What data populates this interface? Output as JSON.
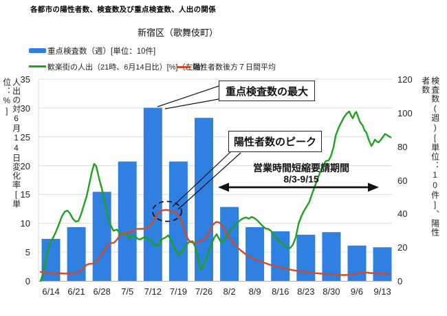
{
  "title": "各都市の陽性者数、検査数及び重点検査数、人出の関係",
  "subtitle": "新宿区（歌舞伎町）",
  "legend": {
    "bar": "重点検査数（週）[単位：10件]",
    "green_line": "歓楽街の人出（21時、6月14日比）[%]（左軸）",
    "red_line": "陽性者数後方７日間平均"
  },
  "annotations": {
    "max_tests": "重点検査数の最大",
    "positives_peak": "陽性者数のピーク",
    "period_line1": "営業時間短縮要請期間",
    "period_line2": "8/3-9/15"
  },
  "colors": {
    "bar": "#2f80e0",
    "green": "#1ba31b",
    "red": "#d04a2b",
    "grid": "#dcdcdc",
    "axis": "#b5b5b5",
    "annotation": "#111111"
  },
  "chart_data": {
    "type": "bar+line combo",
    "left_axis": {
      "label": "人出の対6月14日変化率[単位：%]",
      "range": [
        0,
        35
      ],
      "ticks": [
        0,
        5,
        10,
        15,
        20,
        25,
        30,
        35
      ]
    },
    "right_axis": {
      "label": "検査数(週)[単位：10件]、陽性者数",
      "range": [
        0,
        120
      ],
      "ticks": [
        0,
        20,
        40,
        60,
        80,
        100,
        120
      ]
    },
    "categories": [
      "6/14",
      "6/21",
      "6/28",
      "7/5",
      "7/12",
      "7/19",
      "7/26",
      "8/2",
      "8/9",
      "8/16",
      "8/23",
      "8/30",
      "9/6",
      "9/13"
    ],
    "bar_series": {
      "name": "重点検査数（週）[単位：10件]",
      "axis": "right",
      "values": [
        25,
        32,
        53,
        71,
        103,
        71,
        97,
        44,
        32,
        29.5,
        27.5,
        29,
        21,
        20
      ]
    },
    "line_series": [
      {
        "name": "歓楽街の人出（21時、6月14日比）[%]（左軸）",
        "axis": "left",
        "time_span": "daily, ~6/12 to ~9/15 (t = fraction of span)",
        "points": [
          [
            0,
            0
          ],
          [
            0.008,
            1.5
          ],
          [
            0.014,
            3.5
          ],
          [
            0.022,
            5.5
          ],
          [
            0.029,
            6.8
          ],
          [
            0.035,
            7.4
          ],
          [
            0.043,
            8.4
          ],
          [
            0.051,
            9.6
          ],
          [
            0.061,
            11.2
          ],
          [
            0.069,
            12.0
          ],
          [
            0.077,
            12.2
          ],
          [
            0.084,
            11.7
          ],
          [
            0.092,
            10.8
          ],
          [
            0.1,
            10.3
          ],
          [
            0.108,
            10.4
          ],
          [
            0.116,
            11.6
          ],
          [
            0.124,
            13.2
          ],
          [
            0.132,
            14.8
          ],
          [
            0.139,
            16.8
          ],
          [
            0.147,
            19.0
          ],
          [
            0.153,
            20.3
          ],
          [
            0.159,
            19.9
          ],
          [
            0.167,
            17.8
          ],
          [
            0.175,
            16.0
          ],
          [
            0.183,
            13.8
          ],
          [
            0.191,
            11.5
          ],
          [
            0.198,
            10.0
          ],
          [
            0.208,
            8.7
          ],
          [
            0.218,
            8.9
          ],
          [
            0.228,
            8.2
          ],
          [
            0.238,
            8.1
          ],
          [
            0.246,
            8.2
          ],
          [
            0.253,
            7.4
          ],
          [
            0.261,
            7.8
          ],
          [
            0.269,
            7.9
          ],
          [
            0.277,
            7.3
          ],
          [
            0.285,
            7.2
          ],
          [
            0.293,
            7.5
          ],
          [
            0.301,
            7.5
          ],
          [
            0.308,
            7.2
          ],
          [
            0.316,
            7.0
          ],
          [
            0.326,
            6.2
          ],
          [
            0.336,
            6.1
          ],
          [
            0.346,
            7.2
          ],
          [
            0.356,
            7.5
          ],
          [
            0.365,
            7.9
          ],
          [
            0.375,
            6.8
          ],
          [
            0.385,
            5.4
          ],
          [
            0.395,
            4.5
          ],
          [
            0.405,
            5.2
          ],
          [
            0.415,
            6.2
          ],
          [
            0.424,
            6.7
          ],
          [
            0.434,
            6.9
          ],
          [
            0.442,
            5.9
          ],
          [
            0.45,
            4.0
          ],
          [
            0.458,
            1.9
          ],
          [
            0.466,
            2.8
          ],
          [
            0.474,
            3.9
          ],
          [
            0.481,
            5.2
          ],
          [
            0.489,
            6.6
          ],
          [
            0.497,
            7.6
          ],
          [
            0.503,
            8.1
          ],
          [
            0.509,
            7.4
          ],
          [
            0.517,
            6.6
          ],
          [
            0.525,
            7.2
          ],
          [
            0.532,
            7.9
          ],
          [
            0.54,
            8.6
          ],
          [
            0.548,
            9.2
          ],
          [
            0.556,
            9.7
          ],
          [
            0.564,
            10.2
          ],
          [
            0.572,
            10.6
          ],
          [
            0.58,
            10.9
          ],
          [
            0.587,
            11.0
          ],
          [
            0.595,
            10.8
          ],
          [
            0.603,
            11.1
          ],
          [
            0.611,
            10.9
          ],
          [
            0.619,
            10.5
          ],
          [
            0.627,
            10.0
          ],
          [
            0.635,
            9.5
          ],
          [
            0.642,
            9.1
          ],
          [
            0.65,
            9.0
          ],
          [
            0.658,
            8.7
          ],
          [
            0.666,
            8.0
          ],
          [
            0.674,
            7.4
          ],
          [
            0.682,
            6.8
          ],
          [
            0.69,
            6.7
          ],
          [
            0.697,
            6.1
          ],
          [
            0.705,
            5.8
          ],
          [
            0.713,
            5.7
          ],
          [
            0.721,
            6.3
          ],
          [
            0.729,
            7.6
          ],
          [
            0.737,
            9.9
          ],
          [
            0.745,
            11.2
          ],
          [
            0.752,
            12.1
          ],
          [
            0.76,
            12.9
          ],
          [
            0.768,
            13.7
          ],
          [
            0.776,
            15.2
          ],
          [
            0.784,
            16.5
          ],
          [
            0.792,
            17.8
          ],
          [
            0.8,
            19.0
          ],
          [
            0.807,
            20.0
          ],
          [
            0.815,
            20.8
          ],
          [
            0.823,
            20.9
          ],
          [
            0.829,
            21.6
          ],
          [
            0.837,
            23.2
          ],
          [
            0.843,
            25.2
          ],
          [
            0.851,
            26.5
          ],
          [
            0.859,
            27.5
          ],
          [
            0.866,
            28.3
          ],
          [
            0.874,
            29.0
          ],
          [
            0.882,
            29.4
          ],
          [
            0.888,
            28.6
          ],
          [
            0.892,
            28.2
          ],
          [
            0.898,
            29.1
          ],
          [
            0.902,
            29.3
          ],
          [
            0.908,
            28.3
          ],
          [
            0.914,
            27.4
          ],
          [
            0.92,
            27.0
          ],
          [
            0.925,
            26.2
          ],
          [
            0.931,
            25.7
          ],
          [
            0.937,
            24.6
          ],
          [
            0.945,
            23.4
          ],
          [
            0.951,
            24.0
          ],
          [
            0.955,
            24.5
          ],
          [
            0.961,
            24.2
          ],
          [
            0.965,
            24.0
          ],
          [
            0.971,
            24.4
          ],
          [
            0.977,
            24.9
          ],
          [
            0.984,
            25.5
          ],
          [
            0.99,
            25.3
          ],
          [
            1.0,
            24.9
          ]
        ]
      },
      {
        "name": "陽性者数後方７日間平均",
        "axis": "right",
        "time_span": "daily, ~6/12 to ~9/15 (t = fraction of span)",
        "points": [
          [
            0,
            5.3
          ],
          [
            0.01,
            5.1
          ],
          [
            0.022,
            4.7
          ],
          [
            0.033,
            4.4
          ],
          [
            0.045,
            4.4
          ],
          [
            0.057,
            4.5
          ],
          [
            0.069,
            4.4
          ],
          [
            0.081,
            4.3
          ],
          [
            0.092,
            4.4
          ],
          [
            0.1,
            4.7
          ],
          [
            0.108,
            5.2
          ],
          [
            0.116,
            6.2
          ],
          [
            0.124,
            8.0
          ],
          [
            0.132,
            9.6
          ],
          [
            0.139,
            10.1
          ],
          [
            0.147,
            10.2
          ],
          [
            0.155,
            10.8
          ],
          [
            0.163,
            12.5
          ],
          [
            0.171,
            14.8
          ],
          [
            0.179,
            17.3
          ],
          [
            0.187,
            19.8
          ],
          [
            0.194,
            21.8
          ],
          [
            0.202,
            22.5
          ],
          [
            0.21,
            22.7
          ],
          [
            0.218,
            24.5
          ],
          [
            0.226,
            26.8
          ],
          [
            0.234,
            28.2
          ],
          [
            0.242,
            28.7
          ],
          [
            0.25,
            28.8
          ],
          [
            0.257,
            28.9
          ],
          [
            0.265,
            30.0
          ],
          [
            0.273,
            30.9
          ],
          [
            0.281,
            31.0
          ],
          [
            0.289,
            30.9
          ],
          [
            0.297,
            31.1
          ],
          [
            0.305,
            31.6
          ],
          [
            0.312,
            32.8
          ],
          [
            0.32,
            34.9
          ],
          [
            0.328,
            37.8
          ],
          [
            0.336,
            40.2
          ],
          [
            0.344,
            41.6
          ],
          [
            0.352,
            42.1
          ],
          [
            0.36,
            42.2
          ],
          [
            0.367,
            42.0
          ],
          [
            0.375,
            41.6
          ],
          [
            0.383,
            41.0
          ],
          [
            0.391,
            39.8
          ],
          [
            0.399,
            37.5
          ],
          [
            0.407,
            33.0
          ],
          [
            0.415,
            28.0
          ],
          [
            0.422,
            24.5
          ],
          [
            0.43,
            23.0
          ],
          [
            0.438,
            22.6
          ],
          [
            0.446,
            22.8
          ],
          [
            0.454,
            23.5
          ],
          [
            0.462,
            24.2
          ],
          [
            0.47,
            25.0
          ],
          [
            0.477,
            27.0
          ],
          [
            0.485,
            30.5
          ],
          [
            0.493,
            33.5
          ],
          [
            0.501,
            35.0
          ],
          [
            0.509,
            34.9
          ],
          [
            0.517,
            33.5
          ],
          [
            0.525,
            31.0
          ],
          [
            0.532,
            28.3
          ],
          [
            0.54,
            25.8
          ],
          [
            0.548,
            23.4
          ],
          [
            0.556,
            21.3
          ],
          [
            0.564,
            19.6
          ],
          [
            0.572,
            18.1
          ],
          [
            0.58,
            16.8
          ],
          [
            0.587,
            15.7
          ],
          [
            0.595,
            14.7
          ],
          [
            0.603,
            13.8
          ],
          [
            0.611,
            13.0
          ],
          [
            0.619,
            12.3
          ],
          [
            0.627,
            11.7
          ],
          [
            0.635,
            11.1
          ],
          [
            0.642,
            10.6
          ],
          [
            0.65,
            10.0
          ],
          [
            0.658,
            9.4
          ],
          [
            0.666,
            8.9
          ],
          [
            0.674,
            8.5
          ],
          [
            0.682,
            8.2
          ],
          [
            0.69,
            7.8
          ],
          [
            0.697,
            7.4
          ],
          [
            0.705,
            7.0
          ],
          [
            0.713,
            6.7
          ],
          [
            0.721,
            6.4
          ],
          [
            0.729,
            6.1
          ],
          [
            0.737,
            5.8
          ],
          [
            0.745,
            5.6
          ],
          [
            0.752,
            5.4
          ],
          [
            0.76,
            5.2
          ],
          [
            0.768,
            5.0
          ],
          [
            0.776,
            4.8
          ],
          [
            0.784,
            4.6
          ],
          [
            0.792,
            4.5
          ],
          [
            0.8,
            4.4
          ],
          [
            0.807,
            4.2
          ],
          [
            0.815,
            4.1
          ],
          [
            0.823,
            4.0
          ],
          [
            0.831,
            3.9
          ],
          [
            0.839,
            3.8
          ],
          [
            0.847,
            3.7
          ],
          [
            0.854,
            3.6
          ],
          [
            0.862,
            3.5
          ],
          [
            0.87,
            3.5
          ],
          [
            0.878,
            3.6
          ],
          [
            0.886,
            3.8
          ],
          [
            0.894,
            4.1
          ],
          [
            0.902,
            4.4
          ],
          [
            0.91,
            4.7
          ],
          [
            0.917,
            4.9
          ],
          [
            0.925,
            5.0
          ],
          [
            0.933,
            4.9
          ],
          [
            0.941,
            4.7
          ],
          [
            0.949,
            4.6
          ],
          [
            0.957,
            4.5
          ],
          [
            0.965,
            4.4
          ],
          [
            0.972,
            4.4
          ],
          [
            0.98,
            4.5
          ],
          [
            0.988,
            4.2
          ],
          [
            0.996,
            3.9
          ]
        ]
      }
    ],
    "grid": "horizontal gridlines at left-axis ticks",
    "legend_position": "top-left, two rows"
  }
}
